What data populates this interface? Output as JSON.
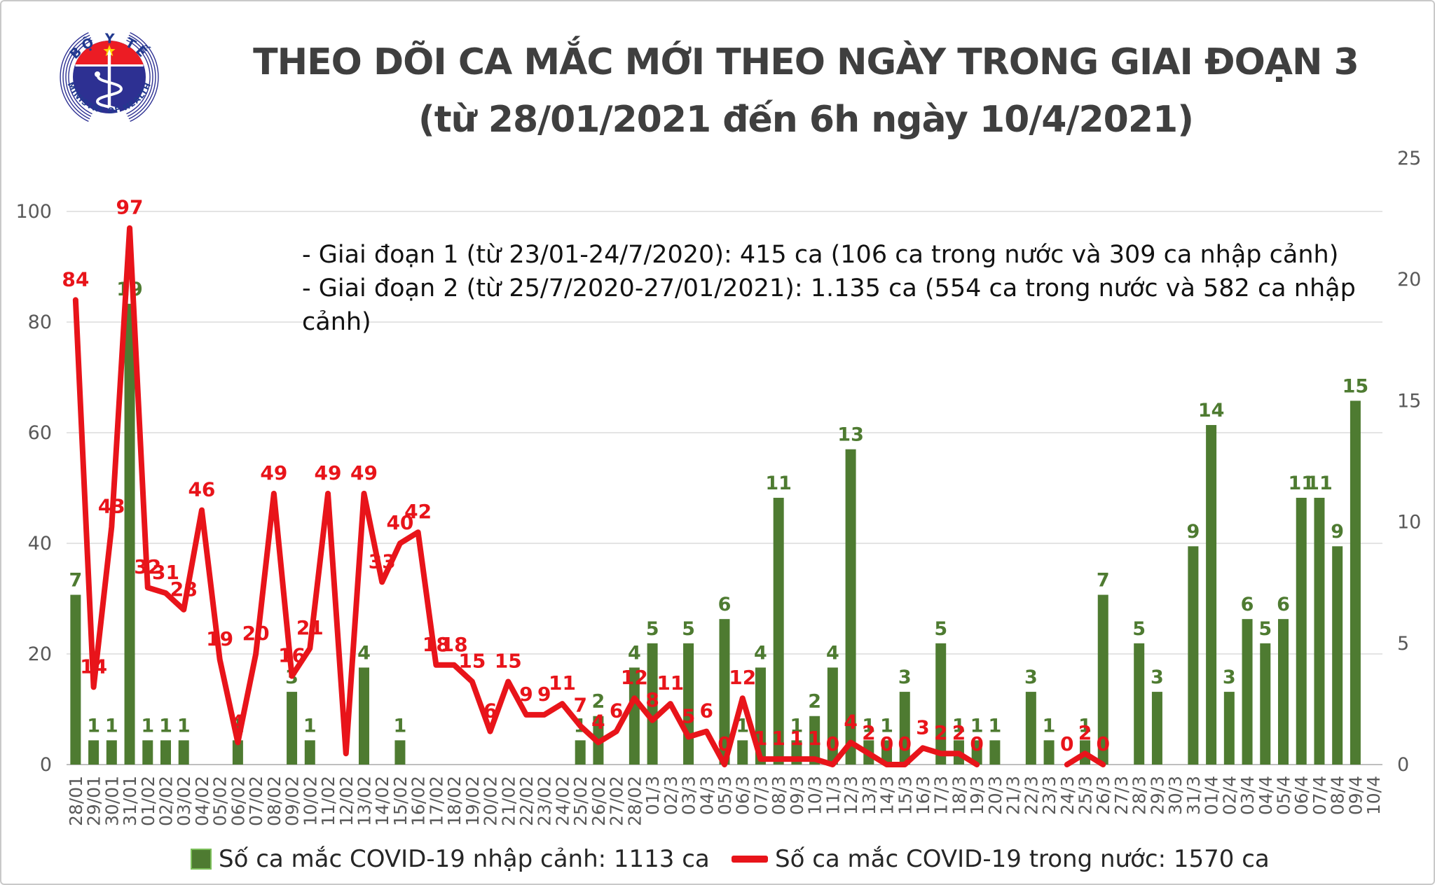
{
  "header": {
    "logo": {
      "top_text": "BỘ Y TẾ",
      "bottom_text": "MINISTRY OF HEALTH"
    },
    "title_line1": "THEO DÕI CA MẮC MỚI THEO NGÀY TRONG GIAI ĐOẠN 3",
    "title_line2": "(từ 28/01/2021 đến 6h ngày 10/4/2021)"
  },
  "annotations": {
    "line1": "- Giai đoạn 1 (từ 23/01-24/7/2020): 415 ca (106 ca trong nước và 309 ca nhập cảnh)",
    "line2": "- Giai đoạn 2 (từ 25/7/2020-27/01/2021): 1.135 ca (554 ca trong nước và 582 ca nhập cảnh)"
  },
  "legend": {
    "imported_label": "Số ca mắc COVID-19 nhập cảnh: 1113 ca",
    "domestic_label": "Số ca mắc COVID-19 trong nước: 1570 ca"
  },
  "colors": {
    "bar_green": "#4e7b31",
    "line_red": "#e8141a",
    "axis_gray": "#595959",
    "grid_gray": "#dcdcdc",
    "title_gray": "#3f3f3f",
    "logo_blue": "#2d3092",
    "logo_red": "#ec1c24",
    "logo_star_yellow": "#ffd200"
  },
  "chart_data": {
    "type": "bar+line",
    "title": "THEO DÕI CA MẮC MỚI THEO NGÀY TRONG GIAI ĐOẠN 3 (từ 28/01/2021 đến 6h ngày 10/4/2021)",
    "grid": true,
    "legend_position": "bottom",
    "left_axis": {
      "range": [
        0,
        100
      ],
      "ticks": [
        0,
        20,
        40,
        60,
        80,
        100
      ]
    },
    "right_axis": {
      "range": [
        0,
        25
      ],
      "ticks": [
        0,
        5,
        10,
        15,
        20,
        25
      ]
    },
    "categories": [
      "28/01",
      "29/01",
      "30/01",
      "31/01",
      "01/02",
      "02/02",
      "03/02",
      "04/02",
      "05/02",
      "06/02",
      "07/02",
      "08/02",
      "09/02",
      "10/02",
      "11/02",
      "12/02",
      "13/02",
      "14/02",
      "15/02",
      "16/02",
      "17/02",
      "18/02",
      "19/02",
      "20/02",
      "21/02",
      "22/02",
      "23/02",
      "24/02",
      "25/02",
      "26/02",
      "27/02",
      "28/02",
      "01/3",
      "02/3",
      "03/3",
      "04/3",
      "05/3",
      "06/3",
      "07/3",
      "08/3",
      "09/3",
      "10/3",
      "11/3",
      "12/3",
      "13/3",
      "14/3",
      "15/3",
      "16/3",
      "17/3",
      "18/3",
      "19/3",
      "20/3",
      "21/3",
      "22/3",
      "23/3",
      "24/3",
      "25/3",
      "26/3",
      "27/3",
      "28/3",
      "29/3",
      "30/3",
      "31/3",
      "01/4",
      "02/4",
      "03/4",
      "04/4",
      "05/4",
      "06/4",
      "07/4",
      "08/4",
      "09/4",
      "10/4"
    ],
    "series": [
      {
        "name": "Số ca mắc COVID-19 nhập cảnh",
        "type": "bar",
        "axis": "right",
        "color": "#4e7b31",
        "total_shown_in_legend": 1113,
        "values": [
          7,
          1,
          1,
          19,
          1,
          1,
          1,
          0,
          0,
          1,
          0,
          0,
          3,
          1,
          0,
          0,
          4,
          0,
          1,
          0,
          0,
          0,
          0,
          0,
          0,
          0,
          0,
          0,
          1,
          2,
          0,
          4,
          5,
          0,
          5,
          0,
          6,
          1,
          4,
          11,
          1,
          2,
          4,
          13,
          1,
          1,
          3,
          0,
          5,
          1,
          1,
          1,
          0,
          3,
          1,
          0,
          1,
          7,
          0,
          5,
          3,
          0,
          9,
          14,
          3,
          6,
          5,
          6,
          11,
          11,
          9,
          15,
          0
        ]
      },
      {
        "name": "Số ca mắc COVID-19 trong nước",
        "type": "line",
        "axis": "left",
        "color": "#e8141a",
        "total_shown_in_legend": 1570,
        "values": [
          84,
          14,
          43,
          97,
          32,
          31,
          28,
          46,
          19,
          4,
          20,
          49,
          16,
          21,
          49,
          2,
          49,
          33,
          40,
          42,
          18,
          18,
          15,
          6,
          15,
          9,
          9,
          11,
          7,
          4,
          6,
          12,
          8,
          11,
          5,
          6,
          0,
          12,
          1,
          1,
          1,
          1,
          0,
          4,
          2,
          0,
          0,
          3,
          2,
          2,
          0,
          null,
          null,
          null,
          null,
          0,
          2,
          0,
          null,
          null,
          null,
          null,
          null,
          null,
          null,
          null,
          null,
          null,
          null,
          null,
          null,
          null,
          null
        ],
        "unlabeled_points": [
          "12/02"
        ]
      }
    ]
  }
}
